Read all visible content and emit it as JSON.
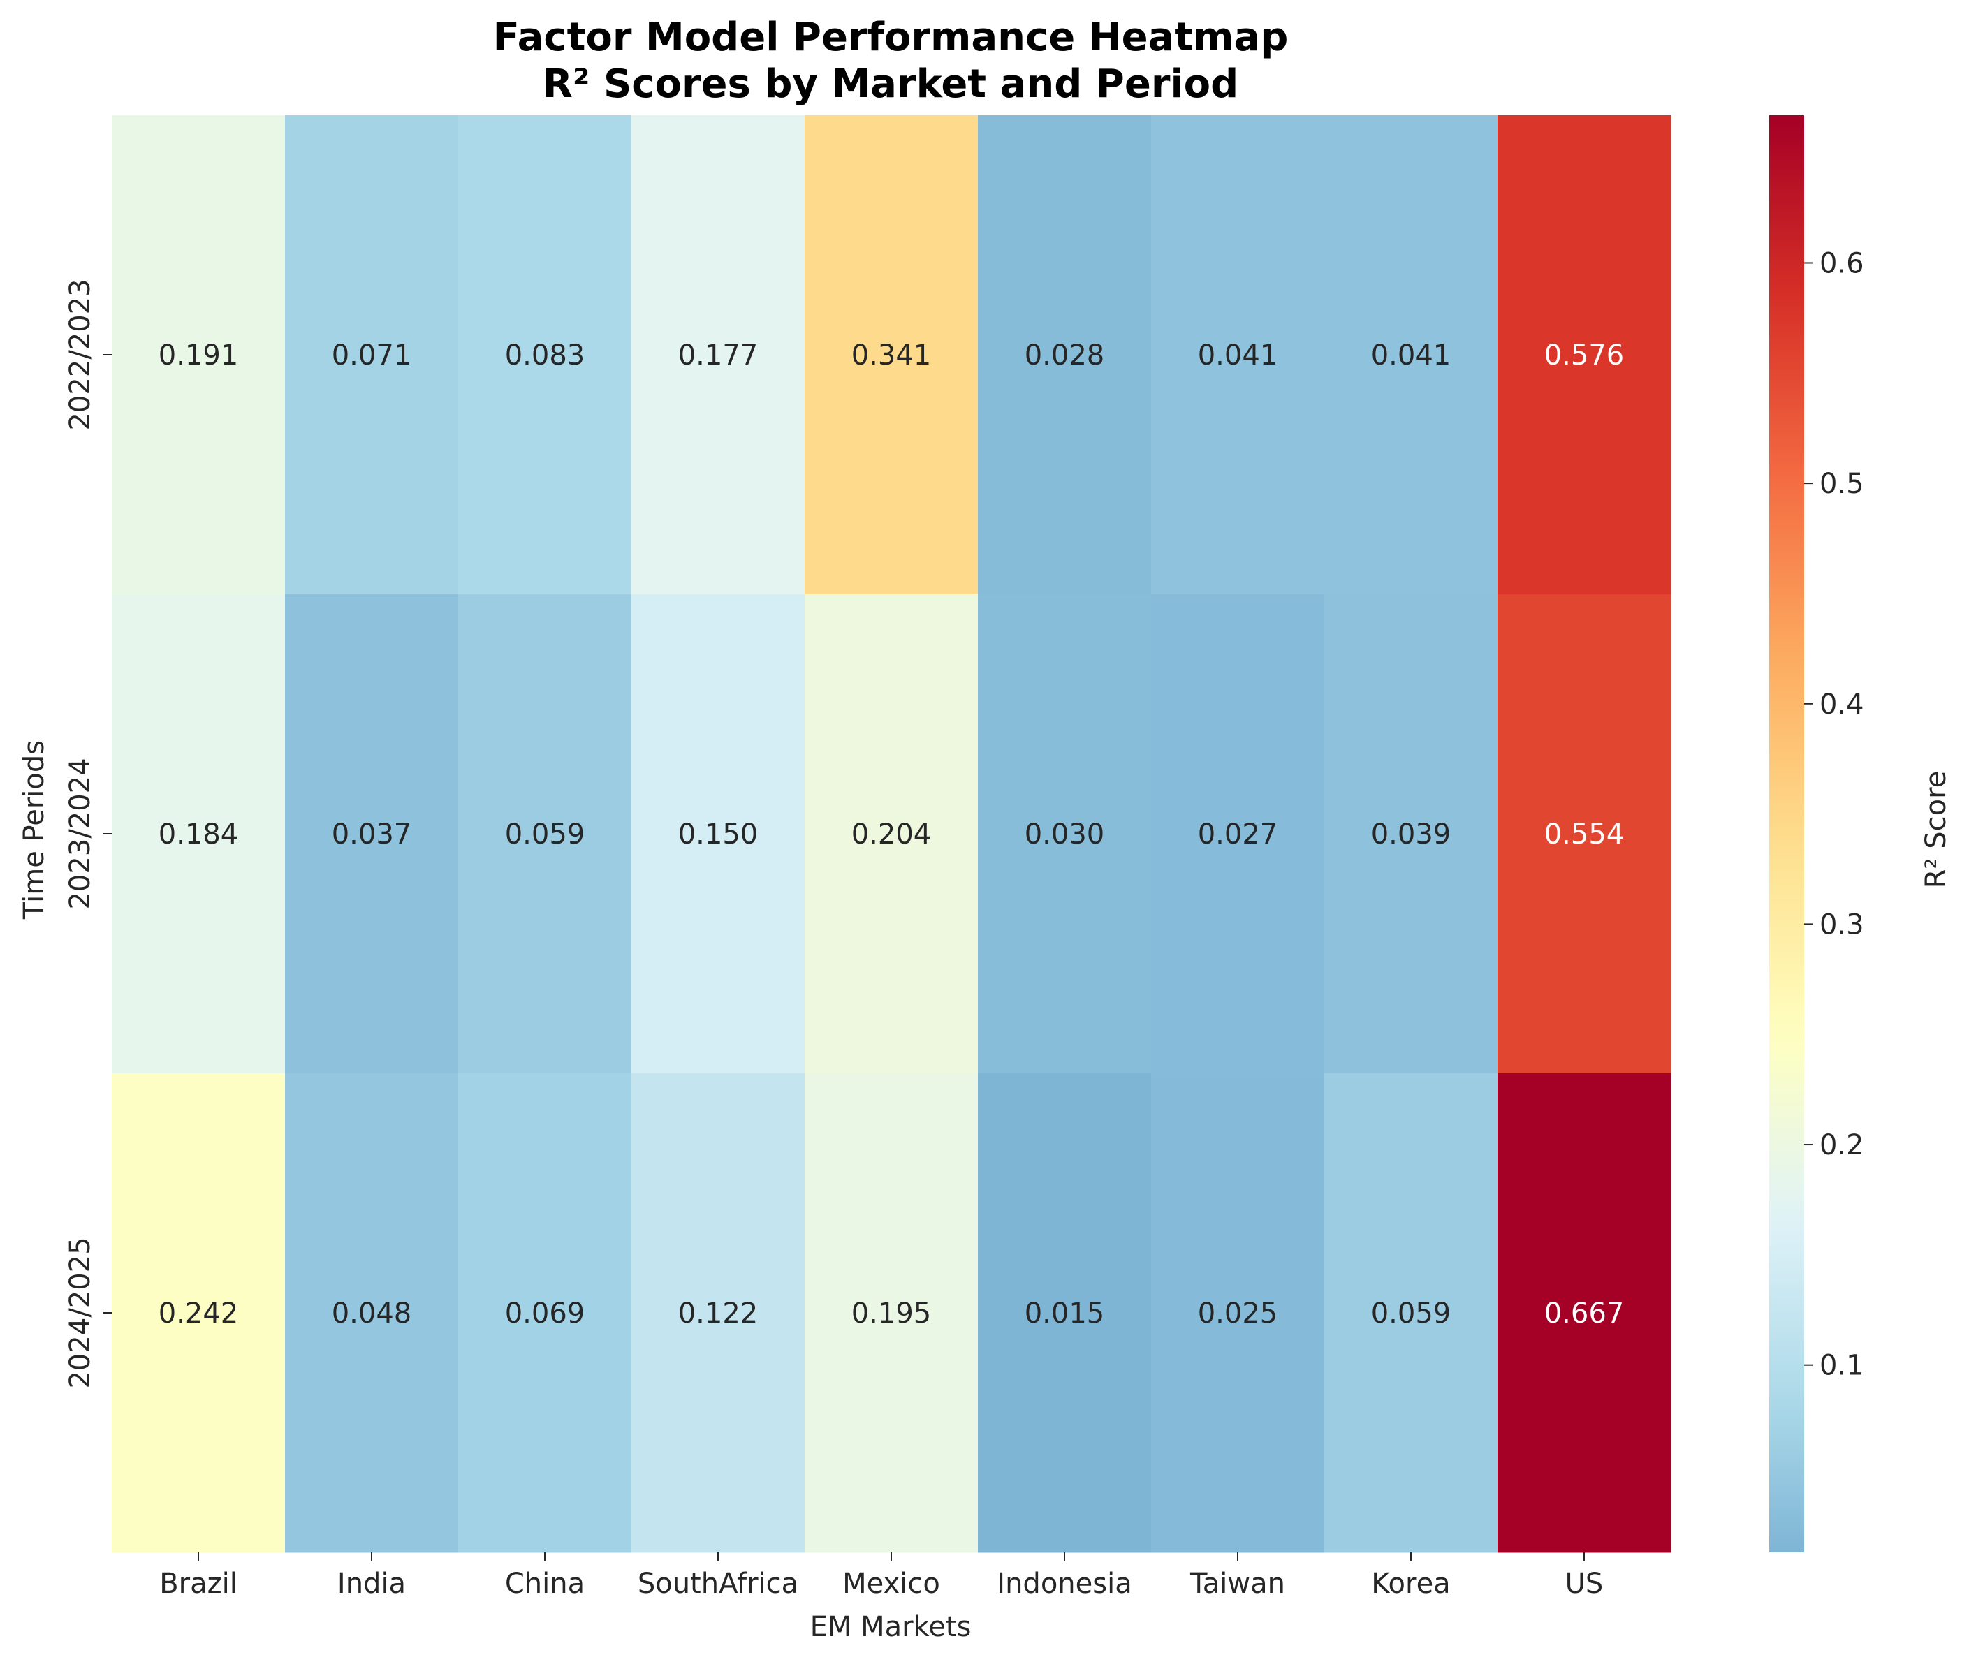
{
  "chart_data": {
    "type": "heatmap",
    "title": "Factor Model Performance Heatmap",
    "subtitle": "R² Scores by Market and Period",
    "xlabel": "EM Markets",
    "ylabel": "Time Periods",
    "colorbar_label": "R² Score",
    "columns": [
      "Brazil",
      "India",
      "China",
      "SouthAfrica",
      "Mexico",
      "Indonesia",
      "Taiwan",
      "Korea",
      "US"
    ],
    "rows": [
      "2022/2023",
      "2023/2024",
      "2024/2025"
    ],
    "values": [
      [
        0.191,
        0.071,
        0.083,
        0.177,
        0.341,
        0.028,
        0.041,
        0.041,
        0.576
      ],
      [
        0.184,
        0.037,
        0.059,
        0.15,
        0.204,
        0.03,
        0.027,
        0.039,
        0.554
      ],
      [
        0.242,
        0.048,
        0.069,
        0.122,
        0.195,
        0.015,
        0.025,
        0.059,
        0.667
      ]
    ],
    "colormap": "RdYlBu_r",
    "value_range": [
      0.015,
      0.667
    ],
    "colorbar_ticks": [
      0.1,
      0.2,
      0.3,
      0.4,
      0.5,
      0.6
    ],
    "legend": "colorbar right",
    "grid": false
  }
}
